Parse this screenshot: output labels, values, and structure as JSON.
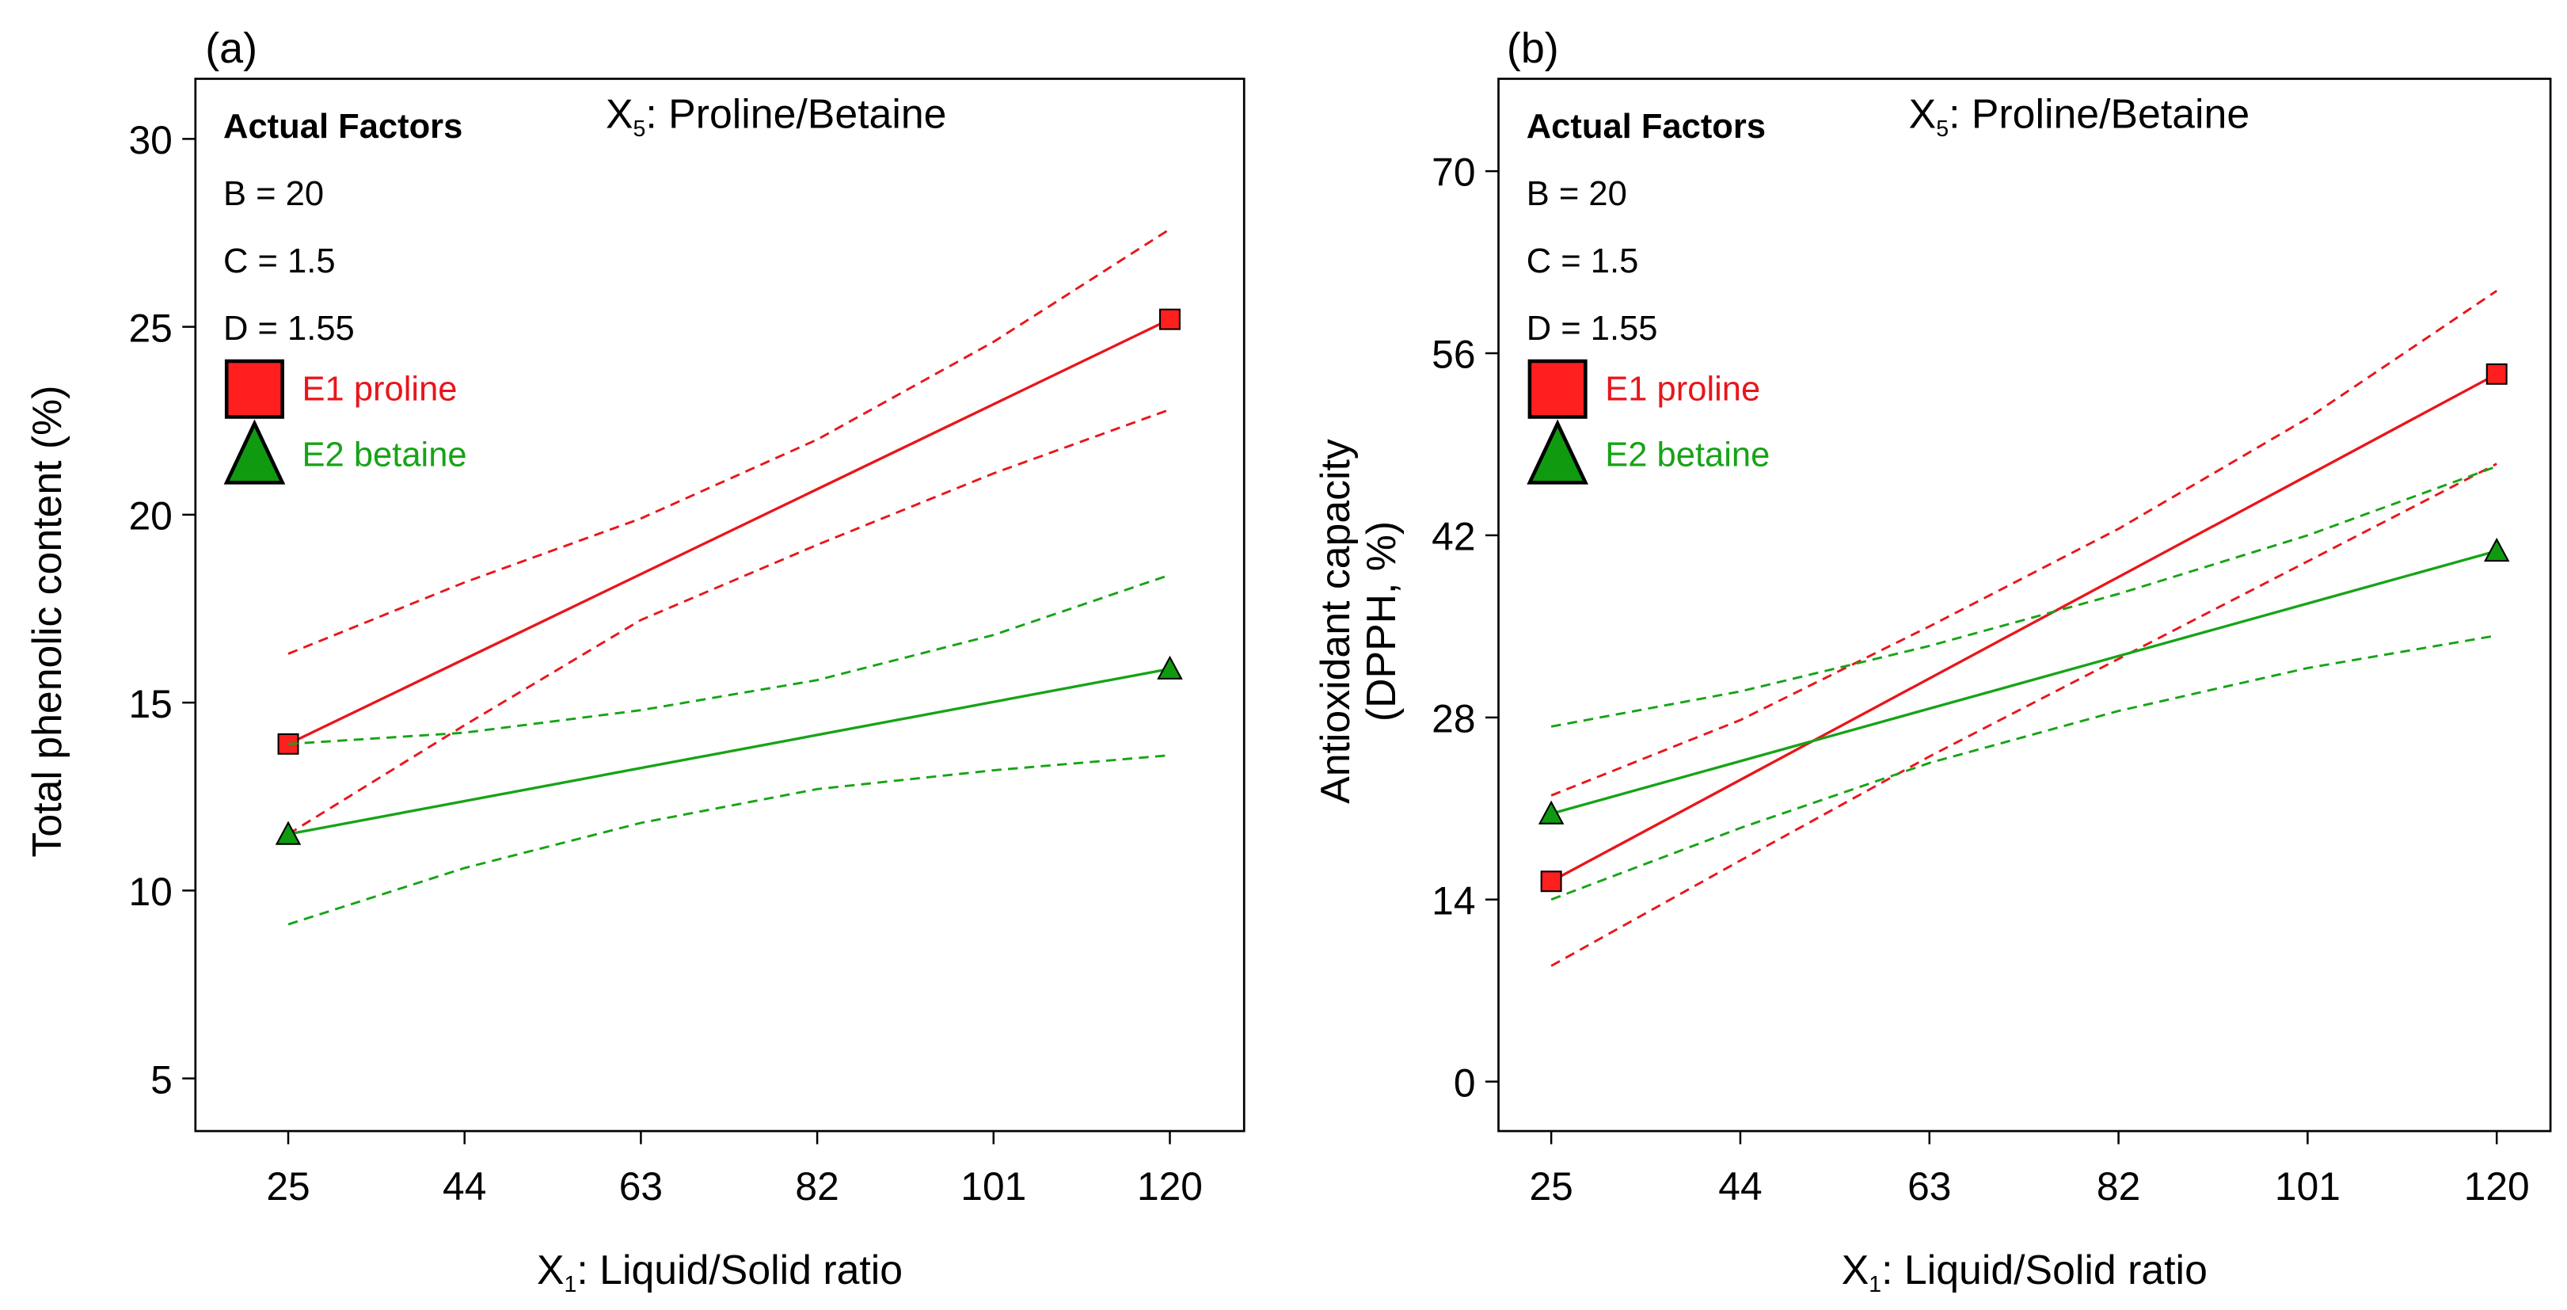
{
  "colors": {
    "proline": "#e8161b",
    "betaine": "#17a317",
    "proline_fill": "#ff1f1f",
    "betaine_fill": "#109a10",
    "axis": "#000000"
  },
  "chart_data": [
    {
      "panel_label": "(a)",
      "type": "line",
      "title": "X₅: Proline/Betaine",
      "xlabel": "X₁: Liquid/Solid ratio",
      "ylabel": "Total phenolic content (%)",
      "xlim": [
        15,
        128
      ],
      "ylim": [
        3.6,
        31.6
      ],
      "x_ticks": [
        25,
        44,
        63,
        82,
        101,
        120
      ],
      "y_ticks": [
        5,
        10,
        15,
        20,
        25,
        30
      ],
      "factors": {
        "heading": "Actual Factors",
        "lines": [
          "B = 20",
          "C = 1.5",
          "D = 1.55"
        ]
      },
      "legend": [
        {
          "label": "E1 proline",
          "marker": "square",
          "color_key": "proline"
        },
        {
          "label": "E2 betaine",
          "marker": "triangle",
          "color_key": "betaine"
        }
      ],
      "series": [
        {
          "name": "E1 proline",
          "color_key": "proline",
          "marker": "square",
          "x": [
            25,
            120
          ],
          "y": [
            13.9,
            25.2
          ],
          "ci_upper": {
            "x": [
              25,
              44,
              63,
              82,
              101,
              120
            ],
            "y": [
              16.3,
              18.2,
              19.9,
              22.0,
              24.6,
              27.6
            ]
          },
          "ci_lower": {
            "x": [
              25,
              44,
              63,
              82,
              101,
              120
            ],
            "y": [
              11.5,
              14.4,
              17.2,
              19.2,
              21.1,
              22.8
            ]
          }
        },
        {
          "name": "E2 betaine",
          "color_key": "betaine",
          "marker": "triangle",
          "x": [
            25,
            120
          ],
          "y": [
            11.5,
            15.9
          ],
          "ci_upper": {
            "x": [
              25,
              44,
              63,
              82,
              101,
              120
            ],
            "y": [
              13.9,
              14.2,
              14.8,
              15.6,
              16.8,
              18.4
            ]
          },
          "ci_lower": {
            "x": [
              25,
              44,
              63,
              82,
              101,
              120
            ],
            "y": [
              9.1,
              10.6,
              11.8,
              12.7,
              13.2,
              13.6
            ]
          }
        }
      ]
    },
    {
      "panel_label": "(b)",
      "type": "line",
      "title": "X₅: Proline/Betaine",
      "xlabel": "X₁: Liquid/Solid ratio",
      "ylabel": "Antioxidant capacity (DPPH, %)",
      "xlim": [
        19.7,
        125.4
      ],
      "ylim": [
        -3.8,
        77.1
      ],
      "x_ticks": [
        25,
        44,
        63,
        82,
        101,
        120
      ],
      "y_ticks": [
        0,
        14,
        28,
        42,
        56,
        70
      ],
      "factors": {
        "heading": "Actual Factors",
        "lines": [
          "B = 20",
          "C = 1.5",
          "D = 1.55"
        ]
      },
      "legend": [
        {
          "label": "E1 proline",
          "marker": "square",
          "color_key": "proline"
        },
        {
          "label": "E2 betaine",
          "marker": "triangle",
          "color_key": "betaine"
        }
      ],
      "series": [
        {
          "name": "E1 proline",
          "color_key": "proline",
          "marker": "square",
          "x": [
            25,
            120
          ],
          "y": [
            15.4,
            54.4
          ],
          "ci_upper": {
            "x": [
              25,
              44,
              63,
              82,
              101,
              120
            ],
            "y": [
              22.0,
              27.8,
              35.0,
              42.5,
              51.0,
              60.8
            ]
          },
          "ci_lower": {
            "x": [
              25,
              44,
              63,
              82,
              101,
              120
            ],
            "y": [
              8.9,
              17.0,
              25.0,
              32.5,
              40.0,
              47.5
            ]
          }
        },
        {
          "name": "E2 betaine",
          "color_key": "betaine",
          "marker": "triangle",
          "x": [
            25,
            120
          ],
          "y": [
            20.6,
            40.8
          ],
          "ci_upper": {
            "x": [
              25,
              44,
              63,
              82,
              101,
              120
            ],
            "y": [
              27.3,
              30.0,
              33.5,
              37.5,
              42.0,
              47.3
            ]
          },
          "ci_lower": {
            "x": [
              25,
              44,
              63,
              82,
              101,
              120
            ],
            "y": [
              14.0,
              19.5,
              24.5,
              28.5,
              31.8,
              34.3
            ]
          }
        }
      ]
    }
  ]
}
